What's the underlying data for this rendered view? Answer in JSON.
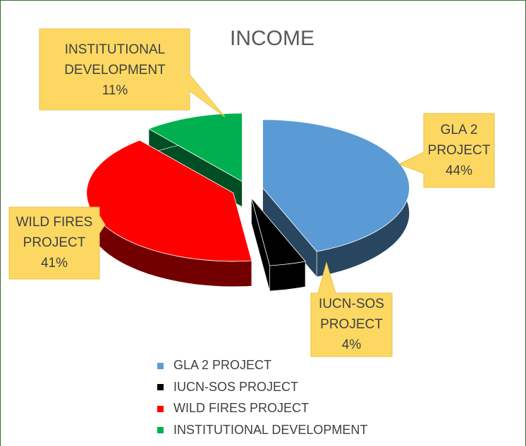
{
  "chart_data": {
    "type": "pie",
    "title": "INCOME",
    "categories": [
      "GLA 2 PROJECT",
      "IUCN-SOS PROJECT",
      "WILD FIRES PROJECT",
      "INSTITUTIONAL DEVELOPMENT"
    ],
    "values": [
      44,
      4,
      41,
      11
    ],
    "value_labels": [
      "44%",
      "4%",
      "41%",
      "11%"
    ],
    "colors": [
      "#5b9bd5",
      "#000000",
      "#ff0000",
      "#00b050"
    ],
    "legend": "bottom"
  }
}
